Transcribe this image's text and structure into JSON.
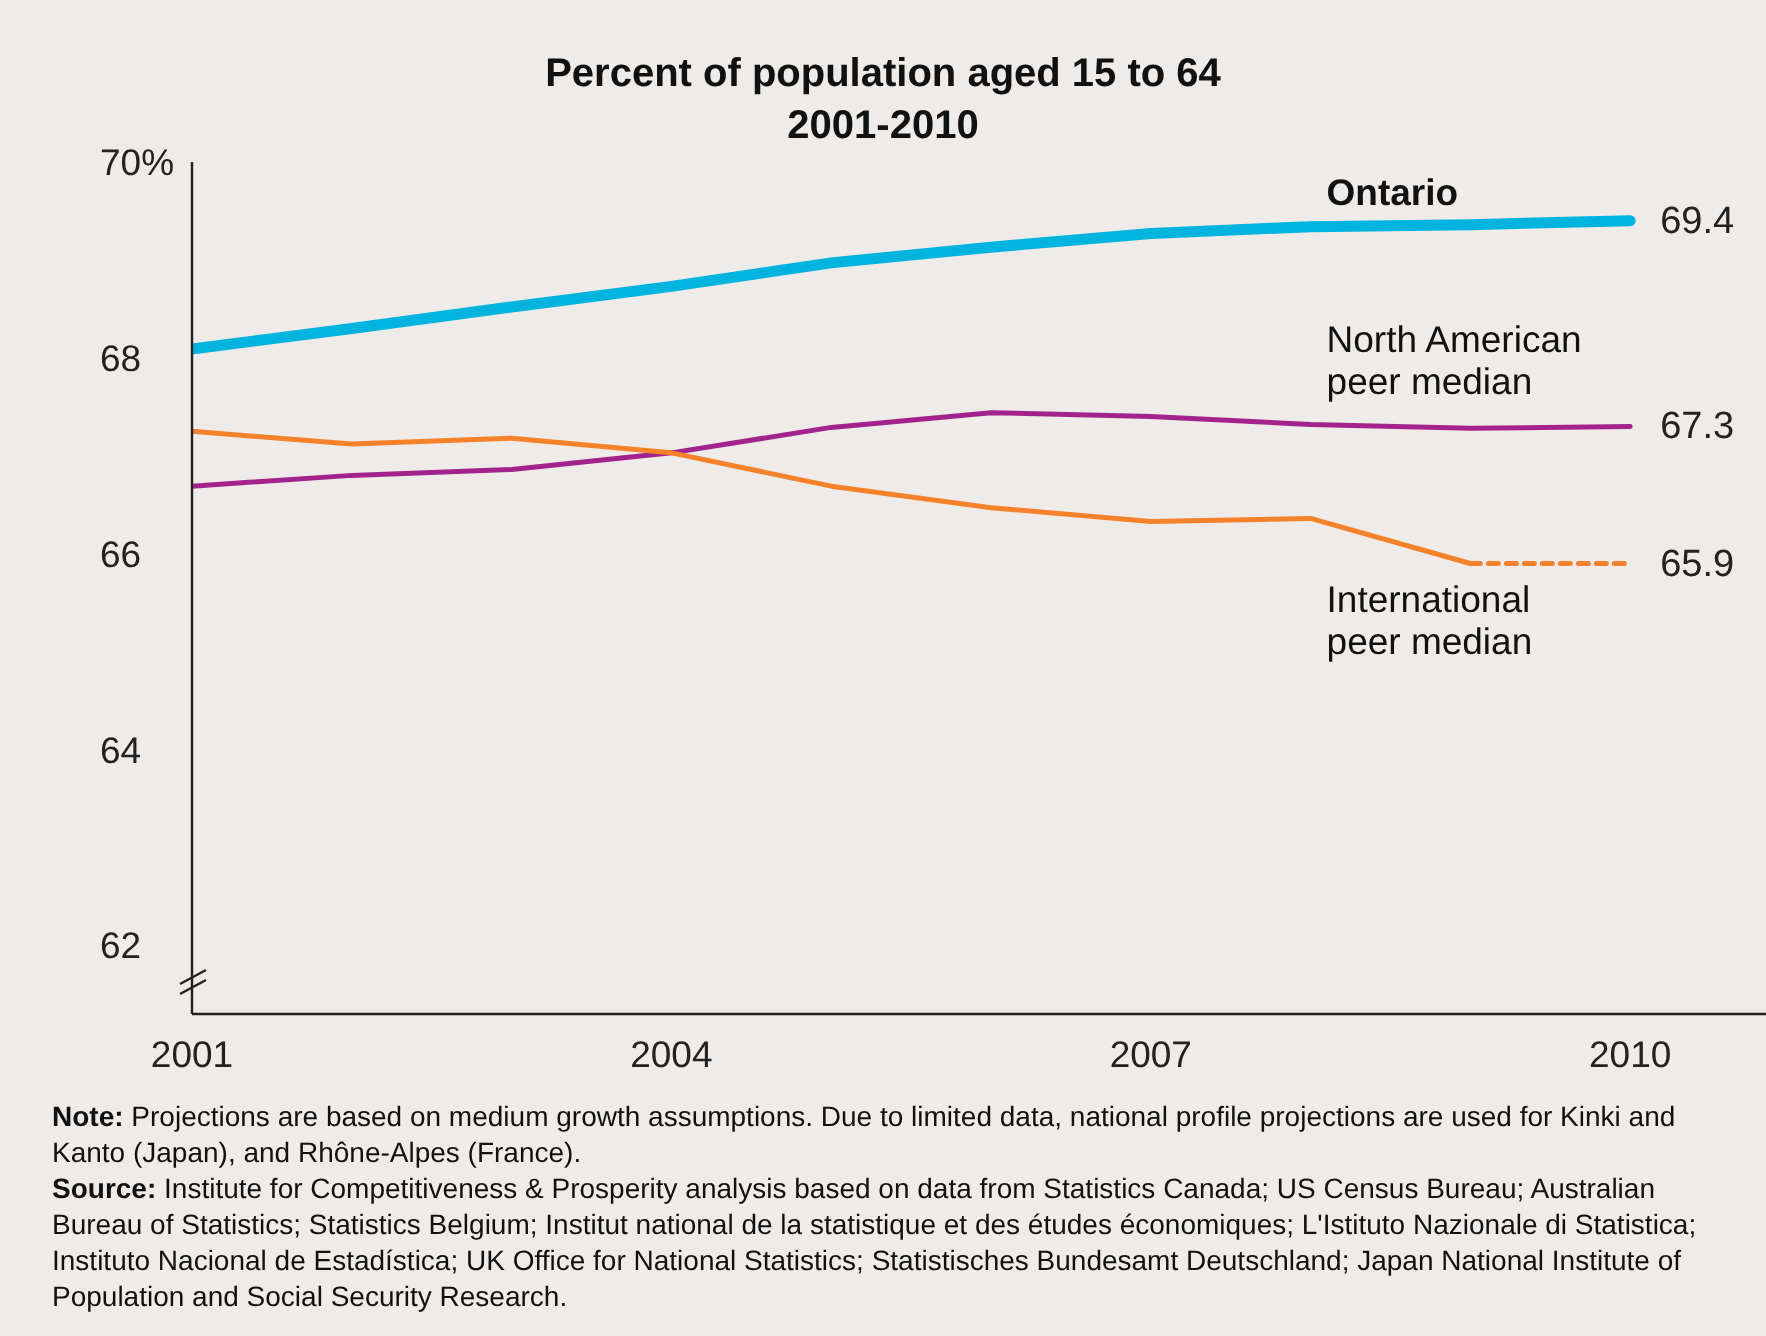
{
  "chart_data": {
    "type": "line",
    "title": "Percent of population aged 15 to 64",
    "subtitle": "2001-2010",
    "x": [
      2001,
      2002,
      2003,
      2004,
      2005,
      2006,
      2007,
      2008,
      2009,
      2010
    ],
    "xlim": [
      2001,
      2010.85
    ],
    "xticks": [
      2001,
      2004,
      2007,
      2010
    ],
    "ylim": [
      61.3,
      70
    ],
    "yticks": [
      62,
      64,
      66,
      68,
      {
        "value": 70,
        "label": "70%"
      }
    ],
    "series": [
      {
        "name": "Ontario",
        "color": "#00b4df",
        "values": [
          68.09,
          68.3,
          68.52,
          68.73,
          68.97,
          69.13,
          69.27,
          69.34,
          69.36,
          69.4
        ],
        "value_labels": [
          null,
          null,
          null,
          null,
          null,
          null,
          null,
          null,
          null,
          "69.4"
        ]
      },
      {
        "name": "North American peer median",
        "color": "#a3238e",
        "values": [
          66.69,
          66.8,
          66.86,
          67.03,
          67.29,
          67.44,
          67.4,
          67.32,
          67.28,
          67.3
        ],
        "value_labels": [
          null,
          null,
          null,
          null,
          null,
          null,
          null,
          null,
          null,
          "67.3"
        ]
      },
      {
        "name": "International peer median",
        "color": "#f5822a",
        "values": [
          67.25,
          67.12,
          67.18,
          67.03,
          66.69,
          66.47,
          66.33,
          66.36,
          65.9,
          null
        ]
      },
      {
        "color": "#f5822a",
        "line_style": "dashed",
        "values": [
          null,
          null,
          null,
          null,
          null,
          null,
          null,
          null,
          65.9,
          65.9
        ],
        "value_labels": [
          null,
          null,
          null,
          null,
          null,
          null,
          null,
          null,
          null,
          "65.9"
        ]
      }
    ],
    "annotations": [
      "Note: Projections are based on medium growth assumptions. Due to limited data, national profile projections are used for Kinki and Kanto (Japan), and Rhône-Alpes (France).",
      "Source: Institute for Competitiveness & Prosperity analysis based on data from Statistics Canada; US Census Bureau; Australian Bureau of Statistics; Statistics Belgium; Institut national de la statistique et des études économiques; L'Istituto Nazionale di Statistica; Instituto Nacional de Estadística; UK Office for National Statistics; Statistisches Bundesamt Deutschland; Japan National Institute of Population and Social Security Research."
    ]
  }
}
